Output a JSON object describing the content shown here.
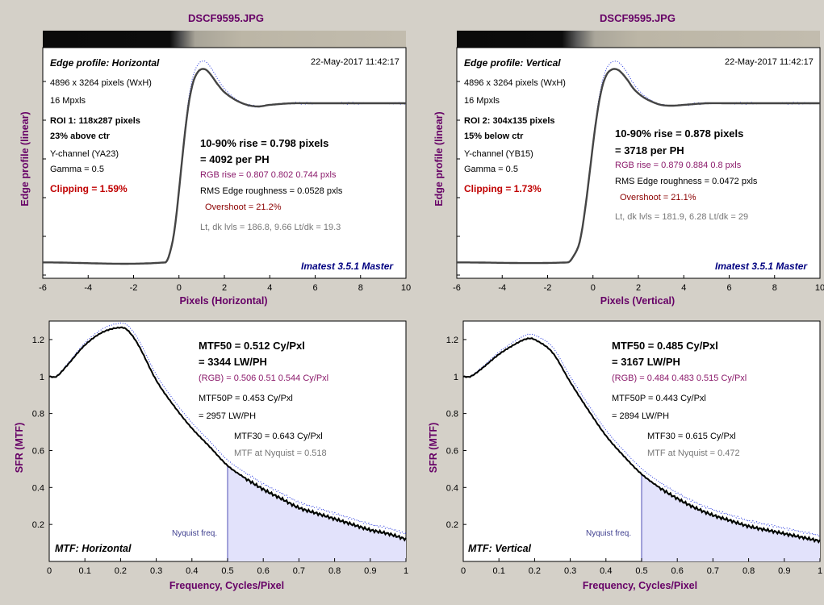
{
  "left": {
    "filename": "DSCF9595.JPG",
    "edge": {
      "panel_title": "Edge profile: Horizontal",
      "timestamp": "22-May-2017 11:42:17",
      "size": "4896 x 3264 pixels (WxH)",
      "mpxls": "16 Mpxls",
      "roi": "ROI 1:  118x287 pixels",
      "position": "23% above ctr",
      "channel": "Y-channel  (YA23)",
      "gamma": "Gamma = 0.5",
      "clipping": "Clipping =   1.59%",
      "rise": "10-90% rise = 0.798 pixels",
      "per_ph": "= 4092 per PH",
      "rgb_rise": "RGB rise = 0.807  0.802  0.744 pxls",
      "roughness": "RMS Edge roughness = 0.0528 pxls",
      "overshoot": "Overshoot = 21.2%",
      "levels": "Lt, dk lvls = 186.8, 9.66   Lt/dk = 19.3",
      "watermark": "Imatest 3.5.1 Master",
      "xlabel": "Pixels (Horizontal)",
      "ylabel": "Edge profile (linear)"
    },
    "mtf": {
      "panel_title": "MTF: Horizontal",
      "mtf50": "MTF50 = 0.512 Cy/Pxl",
      "lwph": "= 3344 LW/PH",
      "rgb": "(RGB) = 0.506  0.51  0.544 Cy/Pxl",
      "mtf50p": "MTF50P = 0.453 Cy/Pxl",
      "mtf50p_lwph": "= 2957 LW/PH",
      "mtf30": "MTF30 = 0.643 Cy/Pxl",
      "nyquist_val": "MTF at Nyquist = 0.518",
      "nyquist_label": "Nyquist freq.",
      "xlabel": "Frequency, Cycles/Pixel",
      "ylabel": "SFR (MTF)"
    }
  },
  "right": {
    "filename": "DSCF9595.JPG",
    "edge": {
      "panel_title": "Edge profile: Vertical",
      "timestamp": "22-May-2017 11:42:17",
      "size": "4896 x 3264 pixels (WxH)",
      "mpxls": "16 Mpxls",
      "roi": "ROI 2:  304x135 pixels",
      "position": "15% below ctr",
      "channel": "Y-channel  (YB15)",
      "gamma": "Gamma = 0.5",
      "clipping": "Clipping =   1.73%",
      "rise": "10-90% rise = 0.878 pixels",
      "per_ph": "= 3718 per PH",
      "rgb_rise": "RGB rise = 0.879  0.884  0.8 pxls",
      "roughness": "RMS Edge roughness = 0.0472 pxls",
      "overshoot": "Overshoot = 21.1%",
      "levels": "Lt, dk lvls = 181.9, 6.28   Lt/dk = 29",
      "watermark": "Imatest 3.5.1 Master",
      "xlabel": "Pixels (Vertical)",
      "ylabel": "Edge profile (linear)"
    },
    "mtf": {
      "panel_title": "MTF: Vertical",
      "mtf50": "MTF50 = 0.485 Cy/Pxl",
      "lwph": "= 3167 LW/PH",
      "rgb": "(RGB) = 0.484  0.483  0.515 Cy/Pxl",
      "mtf50p": "MTF50P = 0.443 Cy/Pxl",
      "mtf50p_lwph": "= 2894 LW/PH",
      "mtf30": "MTF30 = 0.615 Cy/Pxl",
      "nyquist_val": "MTF at Nyquist = 0.472",
      "nyquist_label": "Nyquist freq.",
      "xlabel": "Frequency, Cycles/Pixel",
      "ylabel": "SFR (MTF)"
    }
  },
  "chart_data": [
    {
      "type": "line",
      "title": "Edge profile: Horizontal",
      "xlabel": "Pixels (Horizontal)",
      "ylabel": "Edge profile (linear)",
      "xlim": [
        -6,
        10
      ],
      "x_ticks": [
        "-6",
        "-4",
        "-2",
        "0",
        "2",
        "4",
        "6",
        "8",
        "10"
      ],
      "ylim": [
        -0.1,
        1.35
      ],
      "grid": false,
      "series": [
        {
          "x": [
            -6,
            -0.6,
            -0.4,
            -0.2,
            0,
            0.2,
            0.4,
            0.6,
            0.8,
            1.0,
            1.2,
            1.4,
            1.7,
            2.0,
            2.5,
            3.0,
            3.5,
            4.0,
            5,
            6,
            8,
            10
          ],
          "values": [
            0,
            0,
            0.06,
            0.2,
            0.45,
            0.73,
            0.97,
            1.12,
            1.19,
            1.215,
            1.21,
            1.18,
            1.12,
            1.07,
            1.02,
            0.99,
            0.98,
            0.99,
            1.0,
            1.0,
            1.0,
            1.0
          ]
        }
      ]
    },
    {
      "type": "line",
      "title": "Edge profile: Vertical",
      "xlabel": "Pixels (Vertical)",
      "ylabel": "Edge profile (linear)",
      "xlim": [
        -6,
        10
      ],
      "x_ticks": [
        "-6",
        "-4",
        "-2",
        "0",
        "2",
        "4",
        "6",
        "8",
        "10"
      ],
      "ylim": [
        -0.1,
        1.35
      ],
      "grid": false,
      "series": [
        {
          "x": [
            -6,
            -1.1,
            -0.9,
            -0.6,
            -0.4,
            -0.2,
            0,
            0.2,
            0.4,
            0.6,
            0.8,
            1.0,
            1.2,
            1.5,
            1.8,
            2.2,
            2.6,
            3.0,
            3.5,
            4.0,
            5,
            6,
            8,
            10
          ],
          "values": [
            0,
            0,
            0.03,
            0.12,
            0.28,
            0.5,
            0.74,
            0.95,
            1.1,
            1.18,
            1.21,
            1.215,
            1.2,
            1.15,
            1.09,
            1.04,
            1.01,
            0.99,
            0.985,
            0.99,
            1.0,
            1.0,
            1.0,
            1.0
          ]
        }
      ]
    },
    {
      "type": "line",
      "title": "MTF: Horizontal",
      "xlabel": "Frequency, Cycles/Pixel",
      "ylabel": "SFR (MTF)",
      "xlim": [
        0,
        1
      ],
      "ylim": [
        0,
        1.3
      ],
      "x_ticks": [
        "0",
        "0.1",
        "0.2",
        "0.3",
        "0.4",
        "0.5",
        "0.6",
        "0.7",
        "0.8",
        "0.9",
        "1"
      ],
      "y_ticks": [
        "0.2",
        "0.4",
        "0.6",
        "0.8",
        "1",
        "1.2"
      ],
      "nyquist": 0.5,
      "series": [
        {
          "x": [
            0,
            0.02,
            0.05,
            0.1,
            0.15,
            0.2,
            0.22,
            0.25,
            0.3,
            0.35,
            0.4,
            0.45,
            0.5,
            0.55,
            0.6,
            0.65,
            0.7,
            0.75,
            0.8,
            0.85,
            0.9,
            0.95,
            1.0
          ],
          "values": [
            1.0,
            1.0,
            1.06,
            1.17,
            1.24,
            1.265,
            1.25,
            1.17,
            0.98,
            0.84,
            0.72,
            0.62,
            0.518,
            0.45,
            0.39,
            0.34,
            0.29,
            0.26,
            0.23,
            0.2,
            0.17,
            0.15,
            0.12
          ]
        }
      ]
    },
    {
      "type": "line",
      "title": "MTF: Vertical",
      "xlabel": "Frequency, Cycles/Pixel",
      "ylabel": "SFR (MTF)",
      "xlim": [
        0,
        1
      ],
      "ylim": [
        0,
        1.3
      ],
      "x_ticks": [
        "0",
        "0.1",
        "0.2",
        "0.3",
        "0.4",
        "0.5",
        "0.6",
        "0.7",
        "0.8",
        "0.9",
        "1"
      ],
      "y_ticks": [
        "0.2",
        "0.4",
        "0.6",
        "0.8",
        "1",
        "1.2"
      ],
      "nyquist": 0.5,
      "series": [
        {
          "x": [
            0,
            0.02,
            0.05,
            0.1,
            0.15,
            0.18,
            0.2,
            0.25,
            0.3,
            0.35,
            0.4,
            0.45,
            0.5,
            0.55,
            0.6,
            0.65,
            0.7,
            0.75,
            0.8,
            0.85,
            0.9,
            0.95,
            1.0
          ],
          "values": [
            1.0,
            1.0,
            1.04,
            1.12,
            1.18,
            1.205,
            1.2,
            1.13,
            0.97,
            0.82,
            0.68,
            0.57,
            0.472,
            0.4,
            0.34,
            0.29,
            0.25,
            0.22,
            0.19,
            0.17,
            0.15,
            0.13,
            0.11
          ]
        }
      ]
    }
  ]
}
